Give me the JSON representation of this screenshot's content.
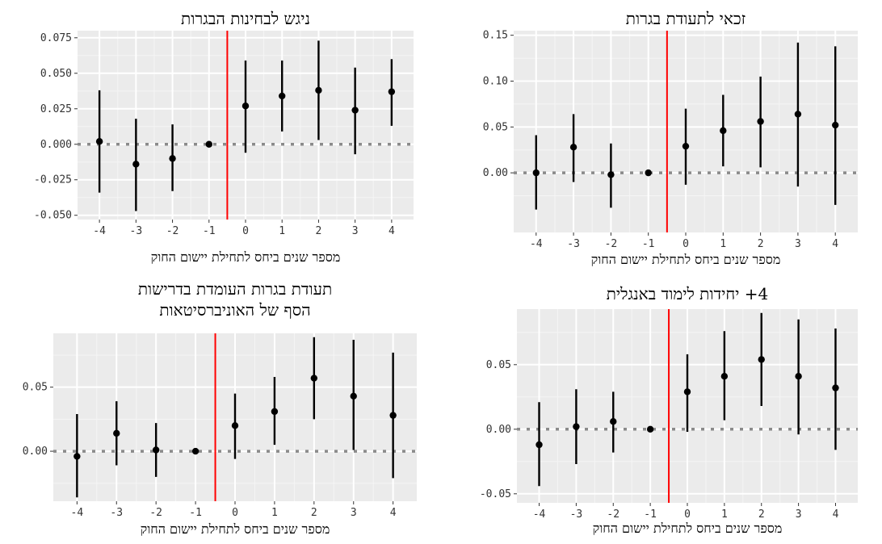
{
  "chart_data": [
    {
      "type": "scatter",
      "title": "זכאי לתעודת בגרות",
      "xlabel": "מספר שנים ביחס לתחילת יישום החוק",
      "ylabel": "",
      "x": [
        -4,
        -3,
        -2,
        -1,
        0,
        1,
        2,
        3,
        4
      ],
      "x_ticks": [
        "-4",
        "-3",
        "-2",
        "-1",
        "0",
        "1",
        "2",
        "3",
        "4"
      ],
      "y_ticks": [
        "0.00",
        "0.05",
        "0.10",
        "0.15"
      ],
      "y_tick_values": [
        0,
        0.05,
        0.1,
        0.15
      ],
      "ylim": [
        -0.065,
        0.155
      ],
      "estimate": [
        0.0,
        0.028,
        -0.002,
        0.0,
        0.029,
        0.046,
        0.056,
        0.064,
        0.052
      ],
      "ci_low": [
        -0.04,
        -0.01,
        -0.038,
        0.0,
        -0.013,
        0.007,
        0.006,
        -0.015,
        -0.035
      ],
      "ci_high": [
        0.041,
        0.064,
        0.032,
        0.0,
        0.07,
        0.085,
        0.105,
        0.142,
        0.138
      ],
      "vline_x": -0.5,
      "hline_y": 0,
      "grid": true
    },
    {
      "type": "scatter",
      "title": "ניגש לבחינות הבגרות",
      "xlabel": "מספר שנים ביחס לתחילת יישום החוק",
      "ylabel": "",
      "x": [
        -4,
        -3,
        -2,
        -1,
        0,
        1,
        2,
        3,
        4
      ],
      "x_ticks": [
        "-4",
        "-3",
        "-2",
        "-1",
        "0",
        "1",
        "2",
        "3",
        "4"
      ],
      "y_ticks": [
        "-0.050",
        "-0.025",
        "0.000",
        "0.025",
        "0.050",
        "0.075"
      ],
      "y_tick_values": [
        -0.05,
        -0.025,
        0,
        0.025,
        0.05,
        0.075
      ],
      "ylim": [
        -0.053,
        0.08
      ],
      "estimate": [
        0.002,
        -0.014,
        -0.01,
        0.0,
        0.027,
        0.034,
        0.038,
        0.024,
        0.037
      ],
      "ci_low": [
        -0.034,
        -0.047,
        -0.033,
        0.0,
        -0.006,
        0.009,
        0.003,
        -0.007,
        0.013
      ],
      "ci_high": [
        0.038,
        0.018,
        0.014,
        0.0,
        0.059,
        0.059,
        0.073,
        0.054,
        0.06
      ],
      "vline_x": -0.5,
      "hline_y": 0,
      "grid": true
    },
    {
      "type": "scatter",
      "title": "4+ יחידות לימוד באנגלית",
      "xlabel": "מספר שנים ביחס לתחילת יישום החוק",
      "ylabel": "",
      "x": [
        -4,
        -3,
        -2,
        -1,
        0,
        1,
        2,
        3,
        4
      ],
      "x_ticks": [
        "-4",
        "-3",
        "-2",
        "-1",
        "0",
        "1",
        "2",
        "3",
        "4"
      ],
      "y_ticks": [
        "-0.05",
        "0.00",
        "0.05"
      ],
      "y_tick_values": [
        -0.05,
        0,
        0.05
      ],
      "ylim": [
        -0.057,
        0.093
      ],
      "estimate": [
        -0.012,
        0.002,
        0.006,
        0.0,
        0.029,
        0.041,
        0.054,
        0.041,
        0.032
      ],
      "ci_low": [
        -0.044,
        -0.027,
        -0.018,
        0.0,
        -0.002,
        0.007,
        0.018,
        -0.004,
        -0.016
      ],
      "ci_high": [
        0.021,
        0.031,
        0.029,
        0.0,
        0.058,
        0.076,
        0.09,
        0.085,
        0.078
      ],
      "vline_x": -0.5,
      "hline_y": 0,
      "grid": true
    },
    {
      "type": "scatter",
      "title": "תעודת בגרות העומדת בדרישות\nהסף של האוניברסיטאות",
      "xlabel": "מספר שנים ביחס לתחילת יישום החוק",
      "ylabel": "",
      "x": [
        -4,
        -3,
        -2,
        -1,
        0,
        1,
        2,
        3,
        4
      ],
      "x_ticks": [
        "-4",
        "-3",
        "-2",
        "-1",
        "0",
        "1",
        "2",
        "3",
        "4"
      ],
      "y_ticks": [
        "0.00",
        "0.05"
      ],
      "y_tick_values": [
        0,
        0.05
      ],
      "ylim": [
        -0.039,
        0.092
      ],
      "estimate": [
        -0.004,
        0.014,
        0.001,
        0.0,
        0.02,
        0.031,
        0.057,
        0.043,
        0.028
      ],
      "ci_low": [
        -0.036,
        -0.011,
        -0.02,
        0.0,
        -0.006,
        0.005,
        0.025,
        0.001,
        -0.021
      ],
      "ci_high": [
        0.029,
        0.039,
        0.022,
        0.0,
        0.045,
        0.058,
        0.089,
        0.087,
        0.077
      ],
      "vline_x": -0.5,
      "hline_y": 0,
      "grid": true
    }
  ]
}
